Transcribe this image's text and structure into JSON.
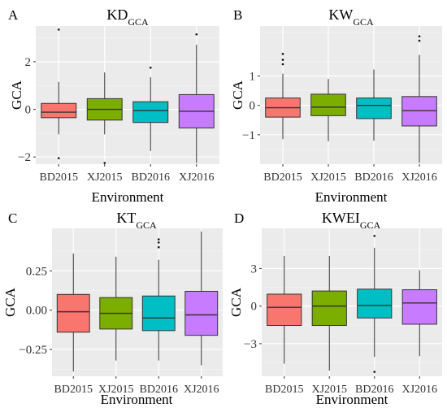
{
  "figure": {
    "background": "#ffffff",
    "panel_background": "#ebebeb",
    "grid_color": "#ffffff"
  },
  "chart_data": [
    {
      "type": "box",
      "panel_letter": "A",
      "title": {
        "main": "KD",
        "sub": "GCA"
      },
      "xlabel": "Environment",
      "ylabel": "GCA",
      "categories": [
        "BD2015",
        "XJ2015",
        "BD2016",
        "XJ2016"
      ],
      "colors": [
        "#f8766d",
        "#7cae00",
        "#00bfc4",
        "#c77cff"
      ],
      "ylim": [
        -2.3,
        3.5
      ],
      "yticks": [
        -2,
        0,
        2
      ],
      "ytick_labels": [
        "−2",
        "0",
        "2"
      ],
      "grid": true,
      "boxes": [
        {
          "whisker_low": -1.05,
          "q1": -0.35,
          "median": -0.12,
          "q3": 0.25,
          "whisker_high": 1.15,
          "outliers": [
            3.35,
            -2.05
          ]
        },
        {
          "whisker_low": -1.05,
          "q1": -0.45,
          "median": 0.0,
          "q3": 0.45,
          "whisker_high": 1.55,
          "outliers": [
            -2.25
          ]
        },
        {
          "whisker_low": -1.75,
          "q1": -0.55,
          "median": -0.05,
          "q3": 0.32,
          "whisker_high": 1.35,
          "outliers": [
            1.75
          ]
        },
        {
          "whisker_low": -2.25,
          "q1": -0.78,
          "median": -0.08,
          "q3": 0.62,
          "whisker_high": 2.72,
          "outliers": [
            3.15
          ]
        }
      ]
    },
    {
      "type": "box",
      "panel_letter": "B",
      "title": {
        "main": "KW",
        "sub": "GCA"
      },
      "xlabel": "Environment",
      "ylabel": "GCA",
      "categories": [
        "BD2015",
        "XJ2015",
        "BD2016",
        "XJ2016"
      ],
      "colors": [
        "#f8766d",
        "#7cae00",
        "#00bfc4",
        "#c77cff"
      ],
      "ylim": [
        -2.0,
        2.7
      ],
      "yticks": [
        -1,
        0,
        1
      ],
      "ytick_labels": [
        "−1",
        "0",
        "1"
      ],
      "grid": true,
      "boxes": [
        {
          "whisker_low": -1.15,
          "q1": -0.4,
          "median": -0.08,
          "q3": 0.25,
          "whisker_high": 1.08,
          "outliers": [
            1.4,
            1.55,
            1.75
          ]
        },
        {
          "whisker_low": -1.22,
          "q1": -0.35,
          "median": -0.06,
          "q3": 0.38,
          "whisker_high": 0.9,
          "outliers": []
        },
        {
          "whisker_low": -1.2,
          "q1": -0.45,
          "median": 0.0,
          "q3": 0.25,
          "whisker_high": 1.22,
          "outliers": []
        },
        {
          "whisker_low": -1.95,
          "q1": -0.7,
          "median": -0.18,
          "q3": 0.3,
          "whisker_high": 1.72,
          "outliers": [
            2.2,
            2.35
          ]
        }
      ]
    },
    {
      "type": "box",
      "panel_letter": "C",
      "title": {
        "main": "KT",
        "sub": "GCA"
      },
      "xlabel": "Environment",
      "ylabel": "GCA",
      "categories": [
        "BD2015",
        "XJ2015",
        "BD2016",
        "XJ2016"
      ],
      "colors": [
        "#f8766d",
        "#7cae00",
        "#00bfc4",
        "#c77cff"
      ],
      "ylim": [
        -0.42,
        0.52
      ],
      "yticks": [
        -0.25,
        0.0,
        0.25
      ],
      "ytick_labels": [
        "−0.25",
        "0.00",
        "0.25"
      ],
      "grid": true,
      "boxes": [
        {
          "whisker_low": -0.39,
          "q1": -0.14,
          "median": -0.01,
          "q3": 0.1,
          "whisker_high": 0.36,
          "outliers": []
        },
        {
          "whisker_low": -0.32,
          "q1": -0.12,
          "median": -0.02,
          "q3": 0.08,
          "whisker_high": 0.34,
          "outliers": []
        },
        {
          "whisker_low": -0.32,
          "q1": -0.13,
          "median": -0.05,
          "q3": 0.09,
          "whisker_high": 0.32,
          "outliers": [
            0.4,
            0.43,
            0.45
          ]
        },
        {
          "whisker_low": -0.35,
          "q1": -0.16,
          "median": -0.03,
          "q3": 0.12,
          "whisker_high": 0.5,
          "outliers": []
        }
      ]
    },
    {
      "type": "box",
      "panel_letter": "D",
      "title": {
        "main": "KWEI",
        "sub": "GCA"
      },
      "xlabel": "Environment",
      "ylabel": "GCA",
      "categories": [
        "BD2015",
        "XJ2015",
        "BD2016",
        "XJ2016"
      ],
      "colors": [
        "#f8766d",
        "#7cae00",
        "#00bfc4",
        "#c77cff"
      ],
      "ylim": [
        -5.6,
        6.2
      ],
      "yticks": [
        -3,
        0,
        3
      ],
      "ytick_labels": [
        "−3",
        "0",
        "3"
      ],
      "grid": true,
      "boxes": [
        {
          "whisker_low": -4.6,
          "q1": -1.55,
          "median": -0.1,
          "q3": 0.95,
          "whisker_high": 4.0,
          "outliers": []
        },
        {
          "whisker_low": -5.15,
          "q1": -1.55,
          "median": 0.0,
          "q3": 1.2,
          "whisker_high": 4.0,
          "outliers": []
        },
        {
          "whisker_low": -4.05,
          "q1": -0.95,
          "median": 0.05,
          "q3": 1.35,
          "whisker_high": 4.65,
          "outliers": [
            5.6,
            -5.25
          ]
        },
        {
          "whisker_low": -4.0,
          "q1": -1.45,
          "median": 0.25,
          "q3": 1.3,
          "whisker_high": 2.85,
          "outliers": []
        }
      ]
    }
  ]
}
